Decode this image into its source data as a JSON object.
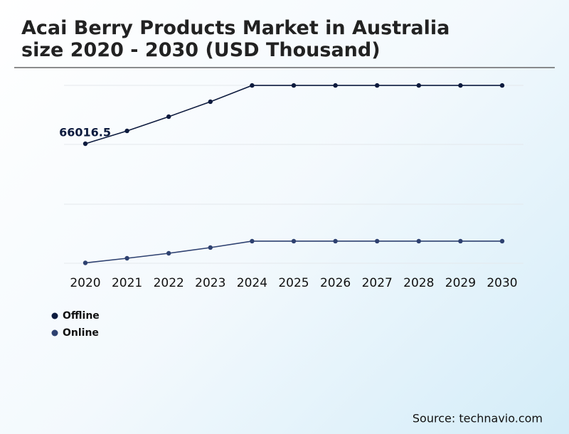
{
  "chart_data": {
    "type": "line",
    "title": "Acai Berry Products Market in Australia size 2020 - 2030 (USD Thousand)",
    "categories": [
      "2020",
      "2021",
      "2022",
      "2023",
      "2024",
      "2025",
      "2026",
      "2027",
      "2028",
      "2029",
      "2030"
    ],
    "series": [
      {
        "name": "Offline",
        "color": "#0d1b3e",
        "values": [
          66016.5,
          73100,
          80960,
          89200,
          98200,
          98200,
          98200,
          98200,
          98200,
          98200,
          98200
        ]
      },
      {
        "name": "Online",
        "color": "#2e4170",
        "values": [
          200,
          2750,
          5500,
          8650,
          12200,
          12200,
          12200,
          12200,
          12200,
          12200,
          12200
        ]
      }
    ],
    "ylim": [
      0,
      100000
    ],
    "source": "Source: technavio.com"
  }
}
